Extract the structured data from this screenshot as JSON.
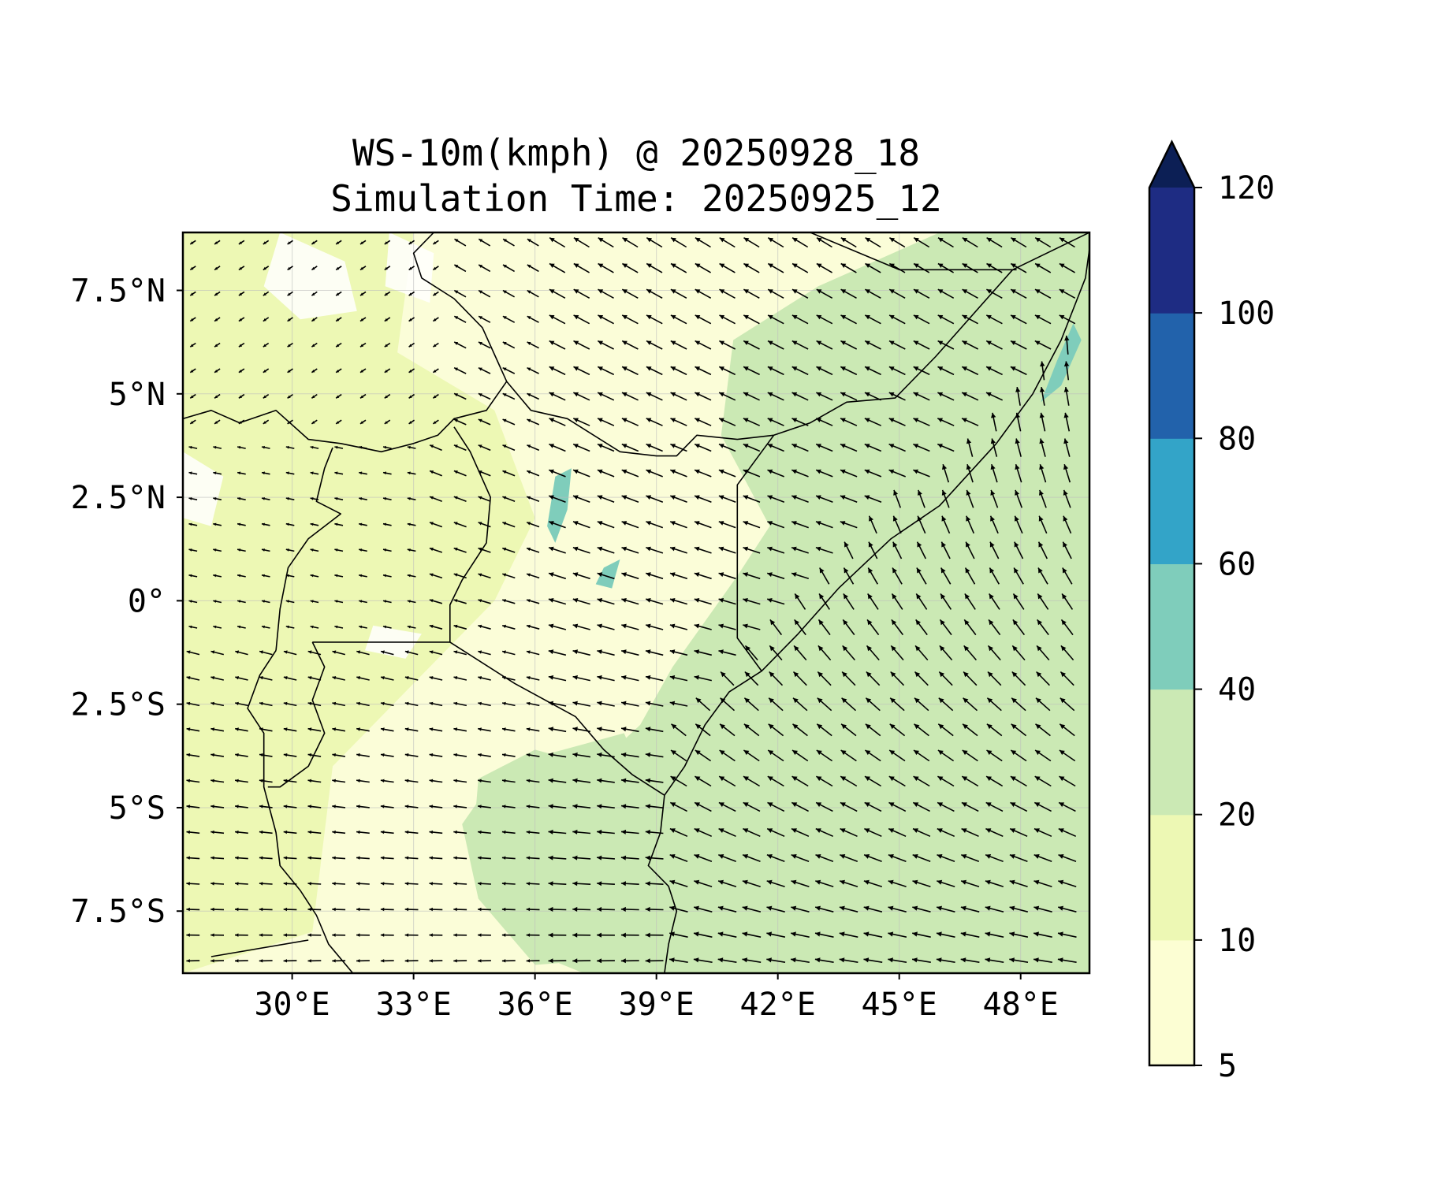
{
  "title": {
    "line1": "WS-10m(kmph) @ 20250928_18",
    "line2": "Simulation Time: 20250925_12"
  },
  "map": {
    "lon_range": [
      27.3,
      49.7
    ],
    "lat_range": [
      -9.0,
      8.9
    ],
    "lon_ticks": [
      {
        "value": 30,
        "label": "30°E"
      },
      {
        "value": 33,
        "label": "33°E"
      },
      {
        "value": 36,
        "label": "36°E"
      },
      {
        "value": 39,
        "label": "39°E"
      },
      {
        "value": 42,
        "label": "42°E"
      },
      {
        "value": 45,
        "label": "45°E"
      },
      {
        "value": 48,
        "label": "48°E"
      }
    ],
    "lat_ticks": [
      {
        "value": 7.5,
        "label": "7.5°N"
      },
      {
        "value": 5,
        "label": "5°N"
      },
      {
        "value": 2.5,
        "label": "2.5°N"
      },
      {
        "value": 0,
        "label": "0°"
      },
      {
        "value": -2.5,
        "label": "2.5°S"
      },
      {
        "value": -5,
        "label": "5°S"
      },
      {
        "value": -7.5,
        "label": "7.5°S"
      }
    ],
    "grid": true,
    "variable": "10 m wind speed",
    "unit": "kmph"
  },
  "colorbar": {
    "levels": [
      {
        "value": 5,
        "label": "5"
      },
      {
        "value": 10,
        "label": "10"
      },
      {
        "value": 20,
        "label": "20"
      },
      {
        "value": 40,
        "label": "40"
      },
      {
        "value": 60,
        "label": "60"
      },
      {
        "value": 80,
        "label": "80"
      },
      {
        "value": 100,
        "label": "100"
      },
      {
        "value": 120,
        "label": "120"
      }
    ],
    "colors": [
      "#fcfed3",
      "#edf8b4",
      "#cbe9b4",
      "#7fcdbb",
      "#33a4c8",
      "#2262ab",
      "#1e2c83"
    ],
    "extend_color": "#0c1f55",
    "extend": "max"
  }
}
